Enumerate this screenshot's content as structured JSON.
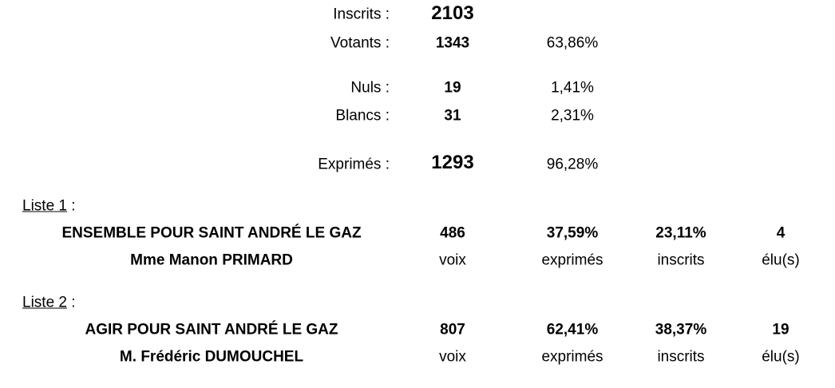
{
  "summary": [
    {
      "label": "Inscrits :",
      "count": "2103"
    },
    {
      "label": "Votants :",
      "count": "1343",
      "percent": "63,86%"
    },
    {
      "label": "Nuls :",
      "count": "19",
      "percent": "1,41%"
    },
    {
      "label": "Blancs :",
      "count": "31",
      "percent": "2,31%"
    },
    {
      "label": "Exprimés :",
      "count": "1293",
      "percent": "96,28%"
    }
  ],
  "units": {
    "votes": "voix",
    "exprimes": "exprimés",
    "inscrits": "inscrits",
    "elus": "élu(s)"
  },
  "lists": [
    {
      "heading": "Liste 1",
      "heading_suffix": ":",
      "name": "ENSEMBLE POUR SAINT ANDRÉ LE GAZ",
      "candidate": "Mme Manon PRIMARD",
      "votes": "486",
      "pct_exprimes": "37,59%",
      "pct_inscrits": "23,11%",
      "elus": "4"
    },
    {
      "heading": "Liste 2",
      "heading_suffix": ":",
      "name": "AGIR POUR SAINT ANDRÉ LE GAZ",
      "candidate": "M. Frédéric DUMOUCHEL",
      "votes": "807",
      "pct_exprimes": "62,41%",
      "pct_inscrits": "38,37%",
      "elus": "19"
    }
  ]
}
